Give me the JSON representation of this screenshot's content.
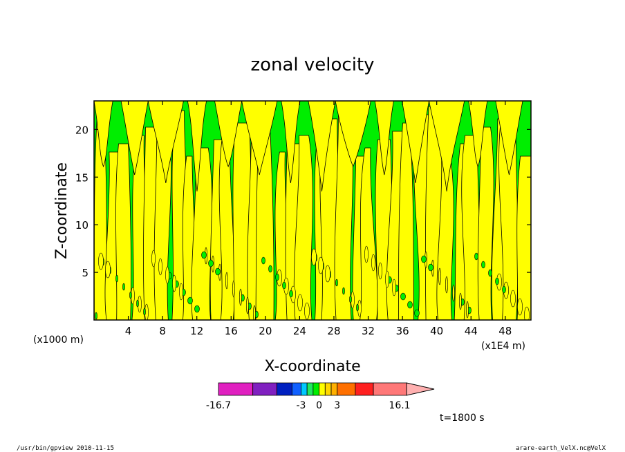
{
  "chart_data": {
    "type": "heatmap",
    "title": "zonal velocity",
    "xlabel": "X-coordinate",
    "ylabel": "Z-coordinate",
    "x_unit_label": "(x1E4 m)",
    "y_unit_label": "(x1000 m)",
    "xlim": [
      0,
      51
    ],
    "ylim": [
      0,
      23
    ],
    "x_ticks": [
      4,
      8,
      12,
      16,
      20,
      24,
      28,
      32,
      36,
      40,
      44,
      48
    ],
    "y_ticks": [
      5,
      10,
      15,
      20
    ],
    "x_tick_labels": [
      "4",
      "8",
      "12",
      "16",
      "20",
      "24",
      "28",
      "32",
      "36",
      "40",
      "44",
      "48"
    ],
    "y_tick_labels": [
      "5",
      "10",
      "15",
      "20"
    ],
    "field_colors": {
      "negative_small": "#00ee00",
      "positive_small": "#ffff00",
      "contour": "#000000"
    },
    "colorbar": {
      "min_label": "-16.7",
      "max_label": "16.1",
      "tick_labels": [
        {
          "label": "-16.7",
          "value": -16.7
        },
        {
          "label": "-3",
          "value": -3
        },
        {
          "label": "0",
          "value": 0
        },
        {
          "label": "3",
          "value": 3
        },
        {
          "label": "16.1",
          "value": 16.1
        }
      ],
      "segments": [
        {
          "from": -16.7,
          "to": -11.0,
          "color": "#e020c0"
        },
        {
          "from": -11.0,
          "to": -7.0,
          "color": "#8020c0"
        },
        {
          "from": -7.0,
          "to": -4.5,
          "color": "#0020c0"
        },
        {
          "from": -4.5,
          "to": -3.0,
          "color": "#1060ff"
        },
        {
          "from": -3.0,
          "to": -2.0,
          "color": "#00c8ff"
        },
        {
          "from": -2.0,
          "to": -1.0,
          "color": "#20e860"
        },
        {
          "from": -1.0,
          "to": 0.0,
          "color": "#00ee00"
        },
        {
          "from": 0.0,
          "to": 1.0,
          "color": "#ffff00"
        },
        {
          "from": 1.0,
          "to": 2.0,
          "color": "#ffd700"
        },
        {
          "from": 2.0,
          "to": 3.0,
          "color": "#ffb000"
        },
        {
          "from": 3.0,
          "to": 6.0,
          "color": "#ff7000"
        },
        {
          "from": 6.0,
          "to": 9.0,
          "color": "#ff2020"
        },
        {
          "from": 9.0,
          "to": 14.5,
          "color": "#ff7878"
        },
        {
          "from": 14.5,
          "to": 16.1,
          "color": "#ffb0b0"
        }
      ]
    },
    "annotations": {
      "time": "t=1800 s",
      "footer_left": "/usr/bin/gpview  2010-11-15",
      "footer_right": "arare-earth_VelX.nc@VelX"
    }
  }
}
